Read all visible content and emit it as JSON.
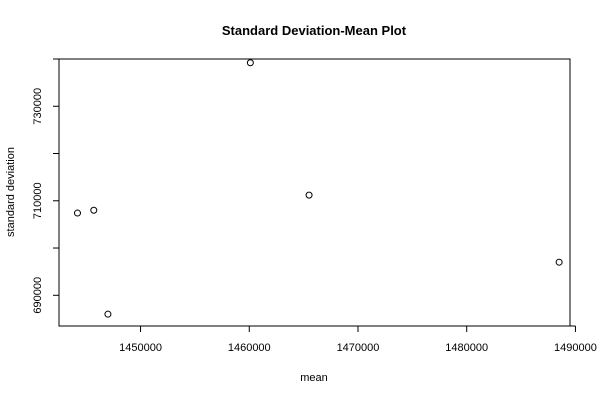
{
  "chart_data": {
    "type": "scatter",
    "title": "Standard Deviation-Mean Plot",
    "xlabel": "mean",
    "ylabel": "standard deviation",
    "xlim": [
      1442500,
      1489500
    ],
    "ylim": [
      683500,
      740000
    ],
    "x_ticks": [
      1450000,
      1460000,
      1470000,
      1480000,
      1490000
    ],
    "x_tick_labels": [
      "1450000",
      "1460000",
      "1470000",
      "1480000",
      "1490000"
    ],
    "y_ticks": [
      690000,
      710000,
      730000
    ],
    "y_tick_labels": [
      "690000",
      "710000",
      "730000"
    ],
    "y_minor_ticks": [
      690000,
      700000,
      710000,
      720000,
      730000,
      740000
    ],
    "grid": false,
    "legend": "none",
    "marker": "open-circle",
    "points": [
      {
        "x": 1444200,
        "y": 707400
      },
      {
        "x": 1445700,
        "y": 708000
      },
      {
        "x": 1447000,
        "y": 686000
      },
      {
        "x": 1460100,
        "y": 739200
      },
      {
        "x": 1465500,
        "y": 711200
      },
      {
        "x": 1488500,
        "y": 697000
      }
    ]
  }
}
